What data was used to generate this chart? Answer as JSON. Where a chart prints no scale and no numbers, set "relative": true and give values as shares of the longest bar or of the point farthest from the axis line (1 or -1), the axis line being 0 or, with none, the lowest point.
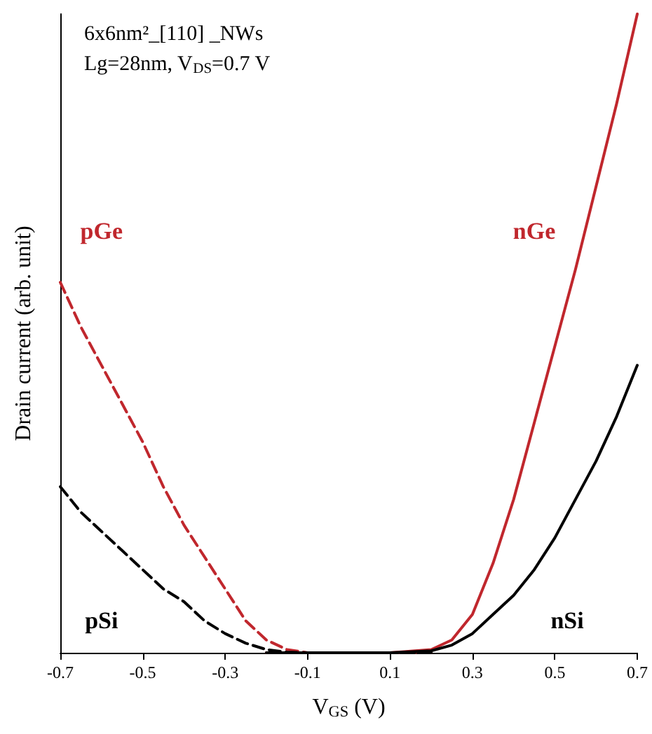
{
  "chart_data": {
    "type": "line",
    "title": "6x6nm²_[110] _NWs",
    "subtitle": "Lg=28nm, V$_{DS}$=0.7 V",
    "xlabel": "V$_{GS}$ (V)",
    "ylabel": "Drain current (arb. unit)",
    "relative": true,
    "xlim": [
      -0.7,
      0.7
    ],
    "xticks": [
      -0.7,
      -0.5,
      -0.3,
      -0.1,
      0.1,
      0.3,
      0.5,
      0.7
    ],
    "grid": false,
    "legend": false,
    "marker": "none",
    "series": [
      {
        "name": "pGe",
        "color": "#c0272d",
        "line_style": "dashed",
        "x": [
          -0.7,
          -0.65,
          -0.6,
          -0.55,
          -0.5,
          -0.45,
          -0.4,
          -0.35,
          -0.3,
          -0.25,
          -0.2,
          -0.15,
          -0.1,
          0.0,
          0.1,
          0.2
        ],
        "values": [
          0.58,
          0.51,
          0.45,
          0.39,
          0.33,
          0.26,
          0.2,
          0.15,
          0.1,
          0.05,
          0.02,
          0.005,
          0,
          0,
          0,
          0
        ]
      },
      {
        "name": "nGe",
        "color": "#c0272d",
        "line_style": "solid",
        "x": [
          -0.2,
          -0.1,
          0.0,
          0.1,
          0.2,
          0.25,
          0.3,
          0.35,
          0.4,
          0.45,
          0.5,
          0.55,
          0.6,
          0.65,
          0.7
        ],
        "values": [
          0,
          0,
          0,
          0,
          0.005,
          0.02,
          0.06,
          0.14,
          0.24,
          0.36,
          0.48,
          0.6,
          0.73,
          0.86,
          1
        ]
      },
      {
        "name": "pSi",
        "color": "#000000",
        "line_style": "dashed",
        "x": [
          -0.7,
          -0.65,
          -0.6,
          -0.55,
          -0.5,
          -0.45,
          -0.4,
          -0.35,
          -0.3,
          -0.25,
          -0.2,
          -0.15,
          -0.1,
          0.0,
          0.1,
          0.2
        ],
        "values": [
          0.26,
          0.22,
          0.19,
          0.16,
          0.13,
          0.1,
          0.08,
          0.05,
          0.03,
          0.015,
          0.005,
          0.001,
          0,
          0,
          0,
          0
        ]
      },
      {
        "name": "nSi",
        "color": "#000000",
        "line_style": "solid",
        "x": [
          -0.2,
          -0.1,
          0.0,
          0.1,
          0.2,
          0.25,
          0.3,
          0.35,
          0.4,
          0.45,
          0.5,
          0.55,
          0.6,
          0.65,
          0.7
        ],
        "values": [
          0,
          0,
          0,
          0,
          0.003,
          0.012,
          0.03,
          0.06,
          0.09,
          0.13,
          0.18,
          0.24,
          0.3,
          0.37,
          0.45
        ]
      }
    ]
  }
}
